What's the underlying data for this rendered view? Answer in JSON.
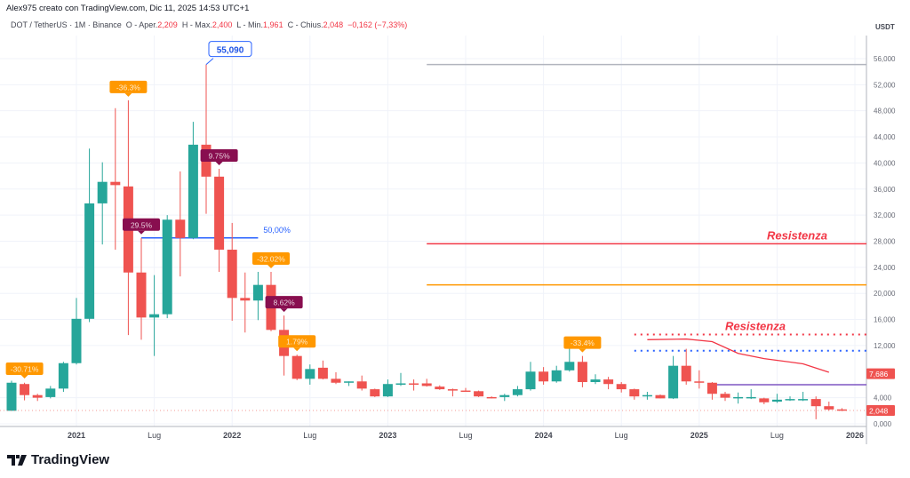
{
  "header": {
    "credit": "Alex975 creato con TradingView.com, Dic 11, 2025 14:53 UTC+1"
  },
  "legend": {
    "symbol": "DOT / TetherUS · 1M · Binance",
    "o_label": "O - Aper.",
    "o": "2,209",
    "h_label": "H - Max.",
    "h": "2,400",
    "l_label": "L - Min.",
    "l": "1,961",
    "c_label": "C - Chius.",
    "c": "2,048",
    "change": "−0,162 (−7,33%)"
  },
  "logo": {
    "text": "TradingView"
  },
  "colors": {
    "up": "#26a69a",
    "down": "#ef5350",
    "orange": "#ff9800",
    "maroon": "#880e4f",
    "blue": "#2962ff",
    "resist": "#f23645",
    "purple": "#7e57c2"
  },
  "chart_data": {
    "type": "candlestick",
    "currency": "USDT",
    "x_start": "2020-08",
    "interval": "1M",
    "ylim": [
      0,
      56
    ],
    "y_ticks": [
      {
        "v": 0,
        "label": "0,000"
      },
      {
        "v": 4,
        "label": "4,000"
      },
      {
        "v": 12,
        "label": "12,000"
      },
      {
        "v": 16,
        "label": "16,000"
      },
      {
        "v": 20,
        "label": "20,000"
      },
      {
        "v": 24,
        "label": "24,000"
      },
      {
        "v": 28,
        "label": "28,000"
      },
      {
        "v": 32,
        "label": "32,000"
      },
      {
        "v": 36,
        "label": "36,000"
      },
      {
        "v": 40,
        "label": "40,000"
      },
      {
        "v": 44,
        "label": "44,000"
      },
      {
        "v": 48,
        "label": "48,000"
      },
      {
        "v": 52,
        "label": "52,000"
      },
      {
        "v": 56,
        "label": "56,000"
      }
    ],
    "x_ticks": [
      {
        "i": 5,
        "label": "2021"
      },
      {
        "i": 11,
        "label": "Lug"
      },
      {
        "i": 17,
        "label": "2022"
      },
      {
        "i": 23,
        "label": "Lug"
      },
      {
        "i": 29,
        "label": "2023"
      },
      {
        "i": 35,
        "label": "Lug"
      },
      {
        "i": 41,
        "label": "2024"
      },
      {
        "i": 47,
        "label": "Lug"
      },
      {
        "i": 53,
        "label": "2025"
      },
      {
        "i": 59,
        "label": "Lug"
      },
      {
        "i": 65,
        "label": "2026"
      }
    ],
    "ohlc": [
      [
        2.0,
        6.6,
        2.0,
        6.3
      ],
      [
        6.1,
        6.3,
        3.6,
        4.4
      ],
      [
        4.4,
        4.6,
        3.5,
        4.0
      ],
      [
        4.1,
        5.8,
        3.9,
        5.4
      ],
      [
        5.4,
        9.5,
        4.9,
        9.3
      ],
      [
        9.3,
        19.3,
        9.1,
        16.1
      ],
      [
        16.1,
        42.2,
        15.6,
        33.8
      ],
      [
        33.8,
        40.1,
        27.5,
        37.1
      ],
      [
        37.1,
        48.4,
        26.7,
        36.6
      ],
      [
        36.4,
        49.6,
        13.6,
        23.2
      ],
      [
        23.2,
        28.5,
        12.9,
        16.3
      ],
      [
        16.3,
        22.8,
        10.4,
        16.8
      ],
      [
        16.8,
        32.0,
        16.2,
        31.3
      ],
      [
        31.3,
        38.7,
        22.6,
        28.5
      ],
      [
        28.5,
        46.3,
        28.3,
        42.8
      ],
      [
        42.8,
        55.09,
        32.2,
        37.9
      ],
      [
        37.9,
        39.1,
        23.3,
        26.7
      ],
      [
        26.7,
        30.8,
        15.8,
        19.3
      ],
      [
        19.3,
        23.2,
        14.0,
        18.9
      ],
      [
        18.9,
        23.3,
        15.9,
        21.3
      ],
      [
        21.3,
        23.3,
        14.2,
        14.4
      ],
      [
        14.4,
        16.6,
        7.4,
        10.4
      ],
      [
        10.4,
        10.6,
        6.7,
        6.9
      ],
      [
        6.9,
        9.1,
        6.0,
        8.4
      ],
      [
        8.6,
        9.7,
        6.8,
        6.9
      ],
      [
        6.9,
        7.9,
        6.1,
        6.3
      ],
      [
        6.3,
        6.5,
        5.8,
        6.5
      ],
      [
        6.5,
        7.4,
        5.1,
        5.4
      ],
      [
        5.3,
        5.4,
        4.1,
        4.2
      ],
      [
        4.2,
        6.8,
        4.1,
        6.1
      ],
      [
        6.1,
        7.8,
        5.8,
        6.2
      ],
      [
        6.2,
        6.8,
        5.1,
        6.1
      ],
      [
        6.2,
        6.9,
        5.7,
        5.8
      ],
      [
        5.7,
        5.9,
        5.2,
        5.3
      ],
      [
        5.3,
        5.4,
        4.2,
        5.1
      ],
      [
        5.1,
        5.5,
        4.9,
        5.0
      ],
      [
        5.0,
        5.1,
        4.1,
        4.2
      ],
      [
        4.1,
        4.2,
        3.9,
        3.9
      ],
      [
        4.1,
        4.6,
        3.5,
        4.4
      ],
      [
        4.4,
        5.8,
        4.2,
        5.3
      ],
      [
        5.3,
        9.5,
        5.1,
        8.0
      ],
      [
        8.0,
        8.7,
        6.0,
        6.5
      ],
      [
        6.5,
        8.9,
        6.3,
        8.2
      ],
      [
        8.2,
        11.8,
        8.0,
        9.5
      ],
      [
        9.5,
        10.4,
        5.6,
        6.4
      ],
      [
        6.4,
        7.6,
        6.1,
        6.8
      ],
      [
        6.8,
        7.2,
        5.3,
        6.1
      ],
      [
        6.1,
        6.4,
        4.8,
        5.3
      ],
      [
        5.3,
        5.4,
        3.7,
        4.2
      ],
      [
        4.2,
        4.9,
        3.7,
        4.4
      ],
      [
        4.4,
        4.5,
        3.9,
        3.9
      ],
      [
        3.9,
        10.4,
        3.8,
        8.9
      ],
      [
        8.9,
        11.5,
        6.0,
        6.5
      ],
      [
        6.5,
        8.2,
        5.4,
        6.3
      ],
      [
        6.3,
        6.4,
        3.7,
        4.6
      ],
      [
        4.6,
        4.9,
        3.5,
        4.0
      ],
      [
        4.0,
        4.8,
        3.1,
        4.1
      ],
      [
        4.0,
        5.3,
        3.8,
        4.1
      ],
      [
        3.9,
        4.0,
        3.0,
        3.3
      ],
      [
        3.4,
        4.6,
        3.2,
        3.7
      ],
      [
        3.7,
        4.2,
        3.5,
        3.8
      ],
      [
        3.8,
        4.9,
        3.5,
        3.8
      ],
      [
        3.8,
        4.2,
        0.7,
        2.7
      ],
      [
        2.7,
        3.4,
        2.0,
        2.2
      ],
      [
        2.209,
        2.4,
        1.961,
        2.048
      ]
    ],
    "levels": [
      {
        "price": 55.09,
        "from": 32,
        "color": "#b2b5be",
        "style": "solid"
      },
      {
        "price": 27.6,
        "from": 32,
        "color": "#f23645",
        "style": "solid",
        "label": "Resistenza"
      },
      {
        "price": 21.3,
        "from": 32,
        "color": "#ff9800",
        "style": "solid"
      },
      {
        "price": 13.7,
        "from": 48,
        "color": "#f23645",
        "style": "dotted",
        "label": "Resistenza"
      },
      {
        "price": 11.2,
        "from": 48,
        "color": "#2962ff",
        "style": "dotted"
      },
      {
        "price": 6.0,
        "from": 54,
        "color": "#7e57c2",
        "style": "solid"
      },
      {
        "price": 28.5,
        "from": 10,
        "to": 19,
        "color": "#2962ff",
        "style": "solid",
        "label": "50,00%"
      }
    ],
    "ma_line": [
      [
        49,
        12.9
      ],
      [
        52,
        13.0
      ],
      [
        54,
        12.6
      ],
      [
        56,
        10.8
      ],
      [
        58,
        10.0
      ],
      [
        61,
        9.2
      ],
      [
        63,
        7.9
      ]
    ],
    "callouts": [
      {
        "i": 1,
        "price": 6.4,
        "text": "-30.71%",
        "color": "#ff9800"
      },
      {
        "i": 9,
        "price": 49.6,
        "text": "-36.3%",
        "color": "#ff9800"
      },
      {
        "i": 10,
        "price": 28.5,
        "text": "29.5%",
        "color": "#880e4f"
      },
      {
        "i": 16,
        "price": 39.1,
        "text": "9.75%",
        "color": "#880e4f"
      },
      {
        "i": 20,
        "price": 23.3,
        "text": "-32.02%",
        "color": "#ff9800"
      },
      {
        "i": 21,
        "price": 16.6,
        "text": "8.62%",
        "color": "#880e4f"
      },
      {
        "i": 22,
        "price": 10.6,
        "text": "1.79%",
        "color": "#ff9800"
      },
      {
        "i": 44,
        "price": 10.4,
        "text": "-33.4%",
        "color": "#ff9800"
      }
    ],
    "peak": {
      "i": 15,
      "price": 55.09,
      "text": "55,090"
    },
    "price_tags": [
      {
        "price": 7.686,
        "text": "7,686"
      },
      {
        "price": 2.048,
        "text": "2,048"
      }
    ]
  }
}
